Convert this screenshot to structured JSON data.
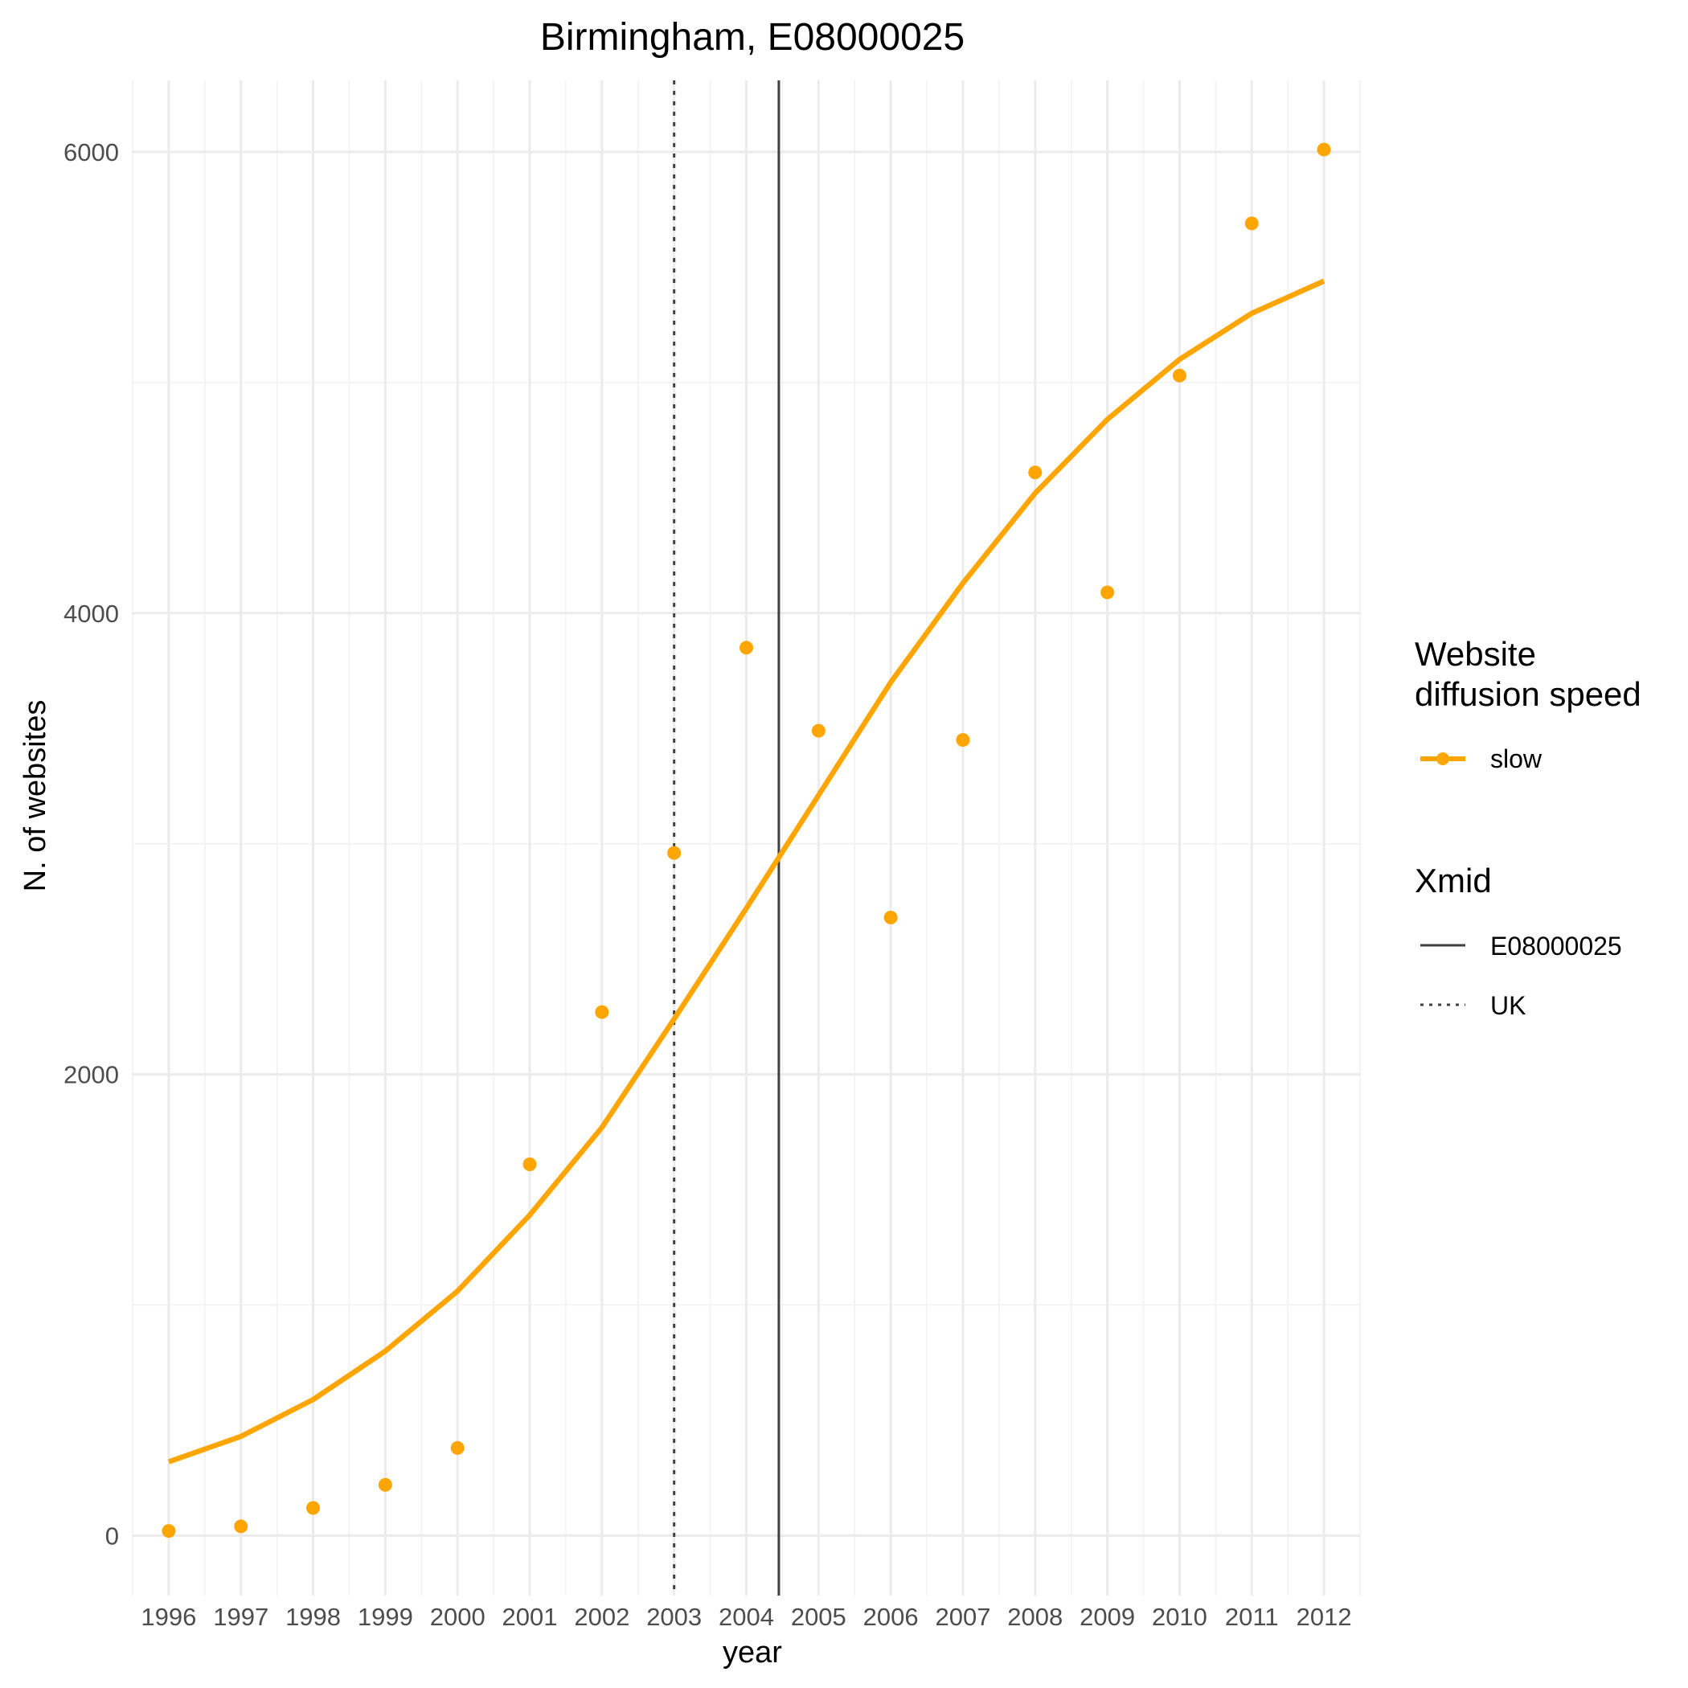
{
  "chart_data": {
    "type": "line",
    "title": "Birmingham, E08000025",
    "xlabel": "year",
    "ylabel": "N. of websites",
    "x": [
      1996,
      1997,
      1998,
      1999,
      2000,
      2001,
      2002,
      2003,
      2004,
      2005,
      2006,
      2007,
      2008,
      2009,
      2010,
      2011,
      2012
    ],
    "x_tick_labels": [
      "1996",
      "1997",
      "1998",
      "1999",
      "2000",
      "2001",
      "2002",
      "2003",
      "2004",
      "2005",
      "2006",
      "2007",
      "2008",
      "2009",
      "2010",
      "2011",
      "2012"
    ],
    "y_ticks": [
      0,
      2000,
      4000,
      6000
    ],
    "y_tick_labels": [
      "0",
      "2000",
      "4000",
      "6000"
    ],
    "xlim": [
      1995.5,
      2012.5
    ],
    "ylim": [
      -260,
      6310
    ],
    "grid": true,
    "series": [
      {
        "name": "slow",
        "kind": "points",
        "color": "#FFA500",
        "values": [
          20,
          40,
          120,
          220,
          380,
          1610,
          2270,
          2960,
          3850,
          3490,
          2680,
          3450,
          4610,
          4090,
          5030,
          5690,
          6010
        ]
      },
      {
        "name": "slow",
        "kind": "fitted-line",
        "color": "#FFA500",
        "values": [
          320,
          430,
          590,
          800,
          1060,
          1390,
          1770,
          2240,
          2720,
          3210,
          3700,
          4130,
          4520,
          4840,
          5100,
          5300,
          5440
        ]
      }
    ],
    "vertical_lines": [
      {
        "label": "E08000025",
        "x": 2004.45,
        "style": "solid",
        "color": "#404040"
      },
      {
        "label": "UK",
        "x": 2003.0,
        "style": "dotted",
        "color": "#404040"
      }
    ],
    "legend": {
      "placement": "right",
      "groups": [
        {
          "title_lines": [
            "Website",
            "diffusion speed"
          ],
          "items": [
            {
              "label": "slow",
              "color": "#FFA500",
              "style": "line-point"
            }
          ]
        },
        {
          "title_lines": [
            "Xmid"
          ],
          "items": [
            {
              "label": "E08000025",
              "style": "solid"
            },
            {
              "label": "UK",
              "style": "dotted"
            }
          ]
        }
      ]
    }
  }
}
